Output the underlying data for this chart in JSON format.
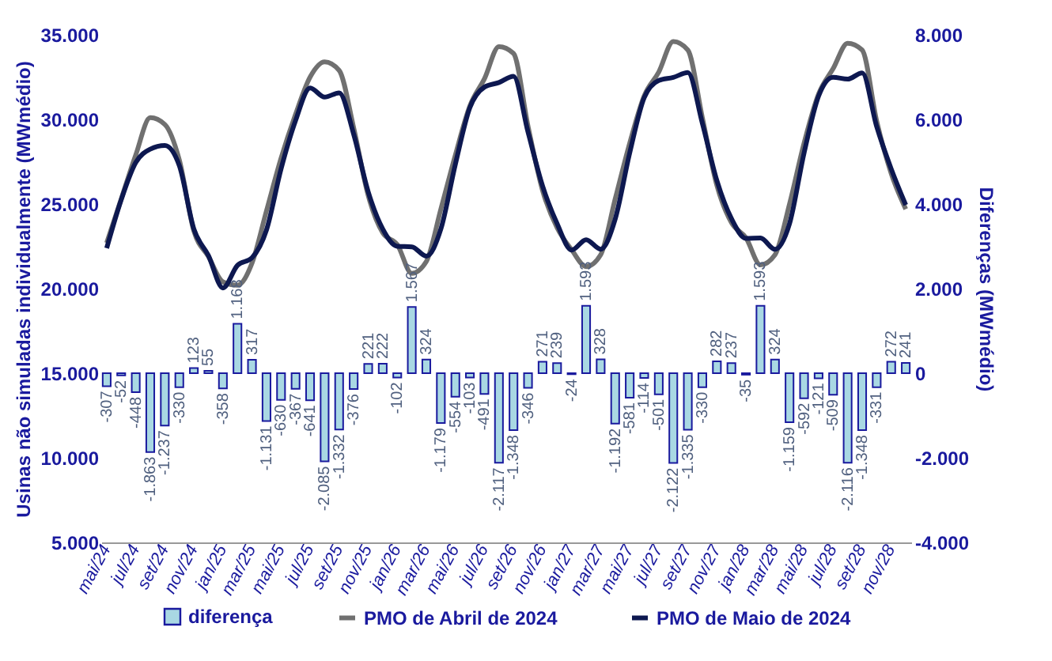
{
  "chart_data": {
    "type": "line",
    "categories": [
      "mai/24",
      null,
      "jul/24",
      null,
      "set/24",
      null,
      "nov/24",
      null,
      "jan/25",
      null,
      "mar/25",
      null,
      "mai/25",
      null,
      "jul/25",
      null,
      "set/25",
      null,
      "nov/25",
      null,
      "jan/26",
      null,
      "mar/26",
      null,
      "mai/26",
      null,
      "jul/26",
      null,
      "set/26",
      null,
      "nov/26",
      null,
      "jan/27",
      null,
      "mar/27",
      null,
      "mai/27",
      null,
      "jul/27",
      null,
      "set/27",
      null,
      "nov/27",
      null,
      "jan/28",
      null,
      "mar/28",
      null,
      "mai/28",
      null,
      "jul/28",
      null,
      "set/28",
      null,
      "nov/28",
      null
    ],
    "series": [
      {
        "name": "diferença",
        "type": "bar",
        "axis": "y2",
        "color": "#a9d8e3",
        "values": [
          -307,
          -52,
          -448,
          -1863,
          -1237,
          -330,
          123,
          55,
          -358,
          1168,
          317,
          -1131,
          -630,
          -367,
          -641,
          -2085,
          -1332,
          -376,
          221,
          222,
          -102,
          1567,
          324,
          -1179,
          -554,
          -103,
          -491,
          -2117,
          -1348,
          -346,
          271,
          239,
          -24,
          1593,
          328,
          -1192,
          -581,
          -114,
          -501,
          -2122,
          -1335,
          -330,
          282,
          237,
          -35,
          1593,
          324,
          -1159,
          -592,
          -121,
          -509,
          -2116,
          -1348,
          -331,
          272,
          241
        ],
        "value_labels": [
          "-307",
          "-52",
          "-448",
          "-1.863",
          "-1.237",
          "-330",
          "123",
          "55",
          "-358",
          "1.168",
          "317",
          "-1.131",
          "-630",
          "-367",
          "-641",
          "-2.085",
          "-1.332",
          "-376",
          "221",
          "222",
          "-102",
          "1.567",
          "324",
          "-1.179",
          "-554",
          "-103",
          "-491",
          "-2.117",
          "-1.348",
          "-346",
          "271",
          "239",
          "-24",
          "1.593",
          "328",
          "-1.192",
          "-581",
          "-114",
          "-501",
          "-2.122",
          "-1.335",
          "-330",
          "282",
          "237",
          "-35",
          "1.593",
          "324",
          "-1.159",
          "-592",
          "-121",
          "-509",
          "-2.116",
          "-1.348",
          "-331",
          "272",
          "241"
        ]
      },
      {
        "name": "PMO de Abril de 2024",
        "color": "#707070",
        "values": [
          22700,
          25300,
          27900,
          30100,
          29700,
          27600,
          23400,
          21900,
          20400,
          20200,
          21500,
          24600,
          27700,
          30300,
          32500,
          33400,
          32900,
          29500,
          25500,
          23300,
          22600,
          20900,
          21600,
          24700,
          27900,
          30800,
          32400,
          34300,
          33900,
          29600,
          25800,
          23600,
          22300,
          21300,
          22000,
          25300,
          28600,
          31400,
          32800,
          34600,
          34100,
          30100,
          26100,
          23900,
          23000,
          21400,
          22000,
          25000,
          28600,
          31500,
          33000,
          34500,
          34100,
          29900,
          26800,
          24700
        ]
      },
      {
        "name": "PMO de Maio de 2024",
        "color": "#0d1850",
        "values": [
          22390,
          25250,
          27450,
          28240,
          28460,
          27270,
          23520,
          21960,
          20040,
          21370,
          21820,
          23470,
          27070,
          29930,
          31860,
          31315,
          31570,
          29120,
          25720,
          23520,
          22500,
          22470,
          21920,
          23520,
          27350,
          30700,
          31910,
          32180,
          32550,
          29250,
          26070,
          23840,
          22280,
          22890,
          22330,
          24110,
          28020,
          31290,
          32300,
          32480,
          32770,
          29770,
          26380,
          24140,
          22970,
          22990,
          22320,
          23840,
          28010,
          31380,
          32490,
          32380,
          32750,
          29570,
          27070,
          24940
        ]
      }
    ],
    "ylabel": "Usinas não simuladas individualmente (MWmédio)",
    "y2label": "Diferenças (MWmédio)",
    "ylim": [
      5000,
      35000
    ],
    "yticks": [
      {
        "value": 5000,
        "label": "5.000"
      },
      {
        "value": 10000,
        "label": "10.000"
      },
      {
        "value": 15000,
        "label": "15.000"
      },
      {
        "value": 20000,
        "label": "20.000"
      },
      {
        "value": 25000,
        "label": "25.000"
      },
      {
        "value": 30000,
        "label": "30.000"
      },
      {
        "value": 35000,
        "label": "35.000"
      }
    ],
    "y2lim": [
      -4000,
      8000
    ],
    "y2ticks": [
      {
        "value": -4000,
        "label": "-4.000"
      },
      {
        "value": -2000,
        "label": "-2.000"
      },
      0,
      {
        "value": 2000,
        "label": "2.000"
      },
      {
        "value": 4000,
        "label": "4.000"
      },
      {
        "value": 6000,
        "label": "6.000"
      },
      {
        "value": 8000,
        "label": "8.000"
      }
    ],
    "legend": "bottom",
    "line_style": "solid"
  }
}
